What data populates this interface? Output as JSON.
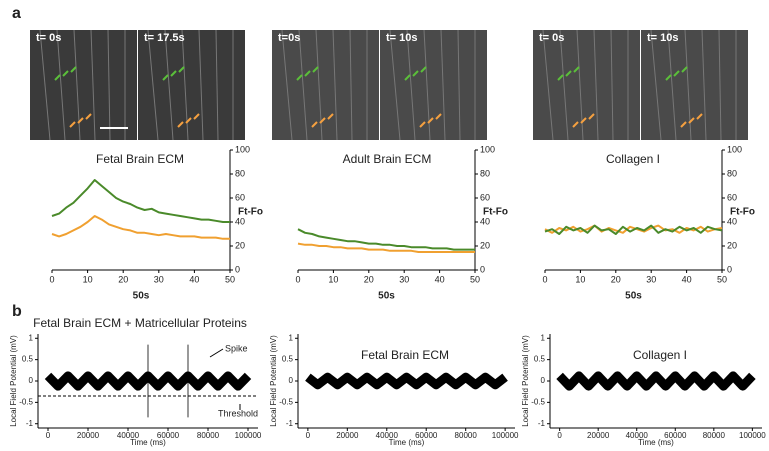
{
  "panel_labels": [
    "a",
    "b"
  ],
  "images": [
    {
      "labels": [
        "t= 0s",
        "t= 17.5s"
      ]
    },
    {
      "labels": [
        "t=0s",
        "t= 10s"
      ]
    },
    {
      "labels": [
        "t= 0s",
        "t= 10s"
      ]
    }
  ],
  "chart_data": [
    {
      "type": "line",
      "title": "Fetal Brain ECM",
      "x_label": "50s",
      "y_label": "Ft-Fo",
      "x": [
        0,
        2,
        4,
        6,
        8,
        10,
        12,
        14,
        16,
        18,
        20,
        22,
        24,
        26,
        28,
        30,
        32,
        34,
        36,
        38,
        40,
        42,
        44,
        46,
        48,
        50
      ],
      "xlim": [
        0,
        50
      ],
      "xticks": [
        0,
        10,
        20,
        30,
        40,
        50
      ],
      "ylim": [
        0,
        100
      ],
      "yticks": [
        0,
        20,
        40,
        60,
        80,
        100
      ],
      "series": [
        {
          "color": "#4a8a2a",
          "values": [
            45,
            47,
            52,
            56,
            62,
            68,
            75,
            70,
            65,
            60,
            57,
            55,
            52,
            50,
            51,
            48,
            47,
            46,
            45,
            44,
            43,
            42,
            42,
            41,
            40,
            40
          ]
        },
        {
          "color": "#f0a030",
          "values": [
            30,
            28,
            30,
            33,
            36,
            40,
            45,
            42,
            38,
            36,
            34,
            33,
            31,
            31,
            30,
            29,
            30,
            29,
            28,
            28,
            28,
            27,
            27,
            27,
            26,
            26
          ]
        }
      ]
    },
    {
      "type": "line",
      "title": "Adult Brain ECM",
      "x_label": "50s",
      "y_label": "Ft-Fo",
      "x": [
        0,
        2,
        4,
        6,
        8,
        10,
        12,
        14,
        16,
        18,
        20,
        22,
        24,
        26,
        28,
        30,
        32,
        34,
        36,
        38,
        40,
        42,
        44,
        46,
        48,
        50
      ],
      "xlim": [
        0,
        50
      ],
      "xticks": [
        0,
        10,
        20,
        30,
        40,
        50
      ],
      "ylim": [
        0,
        100
      ],
      "yticks": [
        0,
        20,
        40,
        60,
        80,
        100
      ],
      "series": [
        {
          "color": "#4a8a2a",
          "values": [
            34,
            31,
            30,
            28,
            27,
            26,
            25,
            24,
            24,
            23,
            22,
            22,
            21,
            21,
            20,
            20,
            19,
            19,
            19,
            18,
            18,
            18,
            17,
            17,
            17,
            17
          ]
        },
        {
          "color": "#f0a030",
          "values": [
            22,
            21,
            21,
            20,
            20,
            19,
            19,
            18,
            18,
            18,
            17,
            17,
            17,
            16,
            16,
            16,
            16,
            15,
            15,
            15,
            15,
            15,
            15,
            15,
            15,
            15
          ]
        }
      ]
    },
    {
      "type": "line",
      "title": "Collagen I",
      "x_label": "50s",
      "y_label": "Ft-Fo",
      "x": [
        0,
        2,
        4,
        6,
        8,
        10,
        12,
        14,
        16,
        18,
        20,
        22,
        24,
        26,
        28,
        30,
        32,
        34,
        36,
        38,
        40,
        42,
        44,
        46,
        48,
        50
      ],
      "xlim": [
        0,
        50
      ],
      "xticks": [
        0,
        10,
        20,
        30,
        40,
        50
      ],
      "ylim": [
        0,
        100
      ],
      "yticks": [
        0,
        20,
        40,
        60,
        80,
        100
      ],
      "series": [
        {
          "color": "#f0a030",
          "values": [
            34,
            31,
            35,
            33,
            36,
            32,
            34,
            37,
            32,
            35,
            33,
            31,
            36,
            34,
            32,
            35,
            37,
            33,
            34,
            31,
            35,
            33,
            36,
            32,
            34,
            35
          ]
        },
        {
          "color": "#4a8a2a",
          "values": [
            32,
            34,
            30,
            36,
            33,
            35,
            31,
            37,
            33,
            34,
            30,
            36,
            32,
            35,
            33,
            37,
            31,
            34,
            32,
            36,
            33,
            35,
            31,
            36,
            34,
            33
          ]
        }
      ]
    },
    {
      "type": "trace",
      "title": "Fetal Brain ECM + Matricellular Proteins",
      "x_label": "Time (ms)",
      "y_label": "Local Field Potential (mV)",
      "x": [
        0,
        5000,
        10000,
        15000,
        20000,
        25000,
        30000,
        35000,
        40000,
        45000,
        50000,
        55000,
        60000,
        65000,
        70000,
        75000,
        80000,
        85000,
        90000,
        95000,
        100000
      ],
      "xlim": [
        -5000,
        105000
      ],
      "xticks": [
        0,
        20000,
        40000,
        60000,
        80000,
        100000
      ],
      "ylim": [
        -1.1,
        1.1
      ],
      "yticks": [
        -1,
        -0.5,
        0,
        0.5,
        1
      ],
      "series": [
        {
          "color": "#000000",
          "values": [
            0.12,
            -0.12,
            0.12,
            -0.12,
            0.12,
            -0.12,
            0.12,
            -0.12,
            0.12,
            -0.12,
            0.12,
            -0.12,
            0.12,
            -0.12,
            0.12,
            -0.12,
            0.12,
            -0.12,
            0.12,
            -0.12,
            0.12
          ]
        }
      ],
      "spikes": {
        "x": [
          50000,
          70000
        ],
        "low": -0.85,
        "high": 0.85
      },
      "threshold": -0.35,
      "annotations": [
        "Spike",
        "Threshold"
      ]
    },
    {
      "type": "trace",
      "title": "Fetal Brain ECM",
      "x_label": "Time (ms)",
      "y_label": "Local Field Potential (mV)",
      "x": [
        0,
        5000,
        10000,
        15000,
        20000,
        25000,
        30000,
        35000,
        40000,
        45000,
        50000,
        55000,
        60000,
        65000,
        70000,
        75000,
        80000,
        85000,
        90000,
        95000,
        100000
      ],
      "xlim": [
        -5000,
        105000
      ],
      "xticks": [
        0,
        20000,
        40000,
        60000,
        80000,
        100000
      ],
      "ylim": [
        -1.1,
        1.1
      ],
      "yticks": [
        -1,
        -0.5,
        0,
        0.5,
        1
      ],
      "series": [
        {
          "color": "#000000",
          "values": [
            0.09,
            -0.09,
            0.09,
            -0.09,
            0.09,
            -0.09,
            0.09,
            -0.09,
            0.09,
            -0.09,
            0.09,
            -0.09,
            0.09,
            -0.09,
            0.09,
            -0.09,
            0.09,
            -0.09,
            0.09,
            -0.09,
            0.09
          ]
        }
      ]
    },
    {
      "type": "trace",
      "title": "Collagen I",
      "x_label": "Time (ms)",
      "y_label": "Local Field Potential (mV)",
      "x": [
        0,
        5000,
        10000,
        15000,
        20000,
        25000,
        30000,
        35000,
        40000,
        45000,
        50000,
        55000,
        60000,
        65000,
        70000,
        75000,
        80000,
        85000,
        90000,
        95000,
        100000
      ],
      "xlim": [
        -5000,
        105000
      ],
      "xticks": [
        0,
        20000,
        40000,
        60000,
        80000,
        100000
      ],
      "ylim": [
        -1.1,
        1.1
      ],
      "yticks": [
        -1,
        -0.5,
        0,
        0.5,
        1
      ],
      "series": [
        {
          "color": "#000000",
          "values": [
            0.12,
            -0.12,
            0.12,
            -0.12,
            0.12,
            -0.12,
            0.12,
            -0.12,
            0.12,
            -0.12,
            0.12,
            -0.12,
            0.12,
            -0.12,
            0.12,
            -0.12,
            0.12,
            -0.12,
            0.12,
            -0.12,
            0.12
          ]
        }
      ]
    }
  ]
}
